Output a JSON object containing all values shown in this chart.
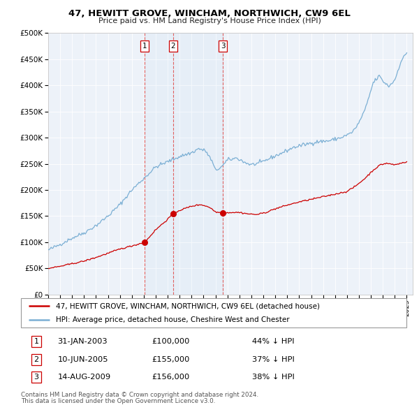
{
  "title": "47, HEWITT GROVE, WINCHAM, NORTHWICH, CW9 6EL",
  "subtitle": "Price paid vs. HM Land Registry's House Price Index (HPI)",
  "legend_line1": "47, HEWITT GROVE, WINCHAM, NORTHWICH, CW9 6EL (detached house)",
  "legend_line2": "HPI: Average price, detached house, Cheshire West and Chester",
  "footer1": "Contains HM Land Registry data © Crown copyright and database right 2024.",
  "footer2": "This data is licensed under the Open Government Licence v3.0.",
  "transactions": [
    {
      "label": "1",
      "date": "31-JAN-2003",
      "price": 100000,
      "hpi_rel": "44% ↓ HPI",
      "x": 2003.08
    },
    {
      "label": "2",
      "date": "10-JUN-2005",
      "price": 155000,
      "hpi_rel": "37% ↓ HPI",
      "x": 2005.44
    },
    {
      "label": "3",
      "date": "14-AUG-2009",
      "price": 156000,
      "hpi_rel": "38% ↓ HPI",
      "x": 2009.62
    }
  ],
  "hpi_color": "#7bafd4",
  "price_color": "#cc0000",
  "vline_color": "#e06060",
  "plot_bg": "#edf2f9",
  "ylim": [
    0,
    500000
  ],
  "xlim_start": 1995.0,
  "xlim_end": 2025.5,
  "hpi_waypoints": [
    [
      1995.0,
      85000
    ],
    [
      1996.0,
      96000
    ],
    [
      1997.0,
      108000
    ],
    [
      1998.0,
      118000
    ],
    [
      1999.0,
      132000
    ],
    [
      2000.0,
      150000
    ],
    [
      2001.0,
      172000
    ],
    [
      2002.0,
      200000
    ],
    [
      2003.0,
      222000
    ],
    [
      2004.0,
      244000
    ],
    [
      2005.0,
      254000
    ],
    [
      2006.0,
      264000
    ],
    [
      2007.0,
      271000
    ],
    [
      2007.6,
      279000
    ],
    [
      2008.2,
      274000
    ],
    [
      2008.7,
      255000
    ],
    [
      2009.0,
      237000
    ],
    [
      2009.6,
      246000
    ],
    [
      2010.0,
      257000
    ],
    [
      2010.8,
      261000
    ],
    [
      2011.5,
      252000
    ],
    [
      2012.0,
      248000
    ],
    [
      2012.8,
      252000
    ],
    [
      2013.5,
      260000
    ],
    [
      2014.5,
      270000
    ],
    [
      2015.5,
      281000
    ],
    [
      2016.5,
      287000
    ],
    [
      2017.5,
      292000
    ],
    [
      2018.5,
      294000
    ],
    [
      2019.5,
      300000
    ],
    [
      2020.3,
      308000
    ],
    [
      2020.8,
      320000
    ],
    [
      2021.5,
      352000
    ],
    [
      2022.2,
      405000
    ],
    [
      2022.7,
      418000
    ],
    [
      2023.0,
      408000
    ],
    [
      2023.5,
      398000
    ],
    [
      2024.0,
      410000
    ],
    [
      2024.5,
      445000
    ],
    [
      2025.0,
      462000
    ]
  ],
  "prop_waypoints": [
    [
      1995.0,
      50000
    ],
    [
      1996.0,
      54000
    ],
    [
      1997.0,
      59000
    ],
    [
      1998.0,
      64000
    ],
    [
      1999.0,
      71000
    ],
    [
      2000.0,
      79000
    ],
    [
      2001.0,
      87000
    ],
    [
      2002.0,
      93000
    ],
    [
      2003.08,
      100000
    ],
    [
      2004.0,
      124000
    ],
    [
      2005.0,
      144000
    ],
    [
      2005.44,
      155000
    ],
    [
      2006.0,
      161000
    ],
    [
      2007.0,
      169000
    ],
    [
      2007.8,
      172000
    ],
    [
      2008.5,
      167000
    ],
    [
      2009.0,
      158000
    ],
    [
      2009.62,
      156000
    ],
    [
      2010.2,
      157000
    ],
    [
      2011.0,
      157000
    ],
    [
      2011.8,
      154000
    ],
    [
      2012.5,
      153000
    ],
    [
      2013.2,
      157000
    ],
    [
      2014.0,
      164000
    ],
    [
      2015.0,
      171000
    ],
    [
      2016.0,
      177000
    ],
    [
      2017.0,
      182000
    ],
    [
      2018.0,
      187000
    ],
    [
      2019.0,
      192000
    ],
    [
      2020.0,
      197000
    ],
    [
      2020.7,
      207000
    ],
    [
      2021.5,
      222000
    ],
    [
      2022.2,
      238000
    ],
    [
      2022.8,
      248000
    ],
    [
      2023.3,
      251000
    ],
    [
      2024.0,
      248000
    ],
    [
      2024.5,
      251000
    ],
    [
      2025.0,
      254000
    ]
  ]
}
